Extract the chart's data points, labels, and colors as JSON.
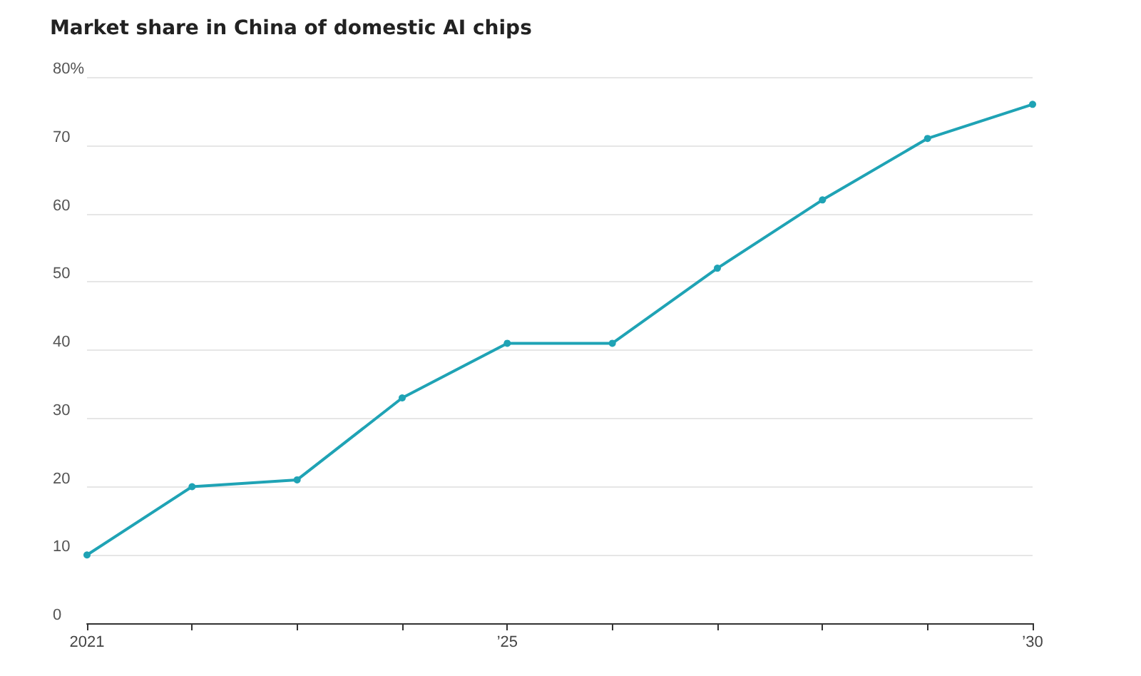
{
  "chart_data": {
    "type": "line",
    "title": "Market share in China of domestic AI chips",
    "x": [
      2021,
      2022,
      2023,
      2024,
      2025,
      2026,
      2027,
      2028,
      2029,
      2030
    ],
    "series": [
      {
        "color": "#1fa3b5",
        "values": [
          10,
          20,
          21,
          33,
          41,
          41,
          52,
          62,
          71,
          76
        ]
      }
    ],
    "xlim": [
      2021,
      2030
    ],
    "xticks": [
      {
        "value": 2021,
        "label": "2021"
      },
      {
        "value": 2022,
        "label": null
      },
      {
        "value": 2023,
        "label": null
      },
      {
        "value": 2024,
        "label": null
      },
      {
        "value": 2025,
        "label": "’25"
      },
      {
        "value": 2026,
        "label": null
      },
      {
        "value": 2027,
        "label": null
      },
      {
        "value": 2028,
        "label": null
      },
      {
        "value": 2029,
        "label": null
      },
      {
        "value": 2030,
        "label": "’30"
      }
    ],
    "ylim": [
      0,
      80
    ],
    "yticks": [
      0,
      10,
      20,
      30,
      40,
      50,
      60,
      70,
      {
        "value": 80,
        "label": "80%"
      }
    ],
    "grid": "y",
    "marker": "circle",
    "line_style": "solid"
  }
}
